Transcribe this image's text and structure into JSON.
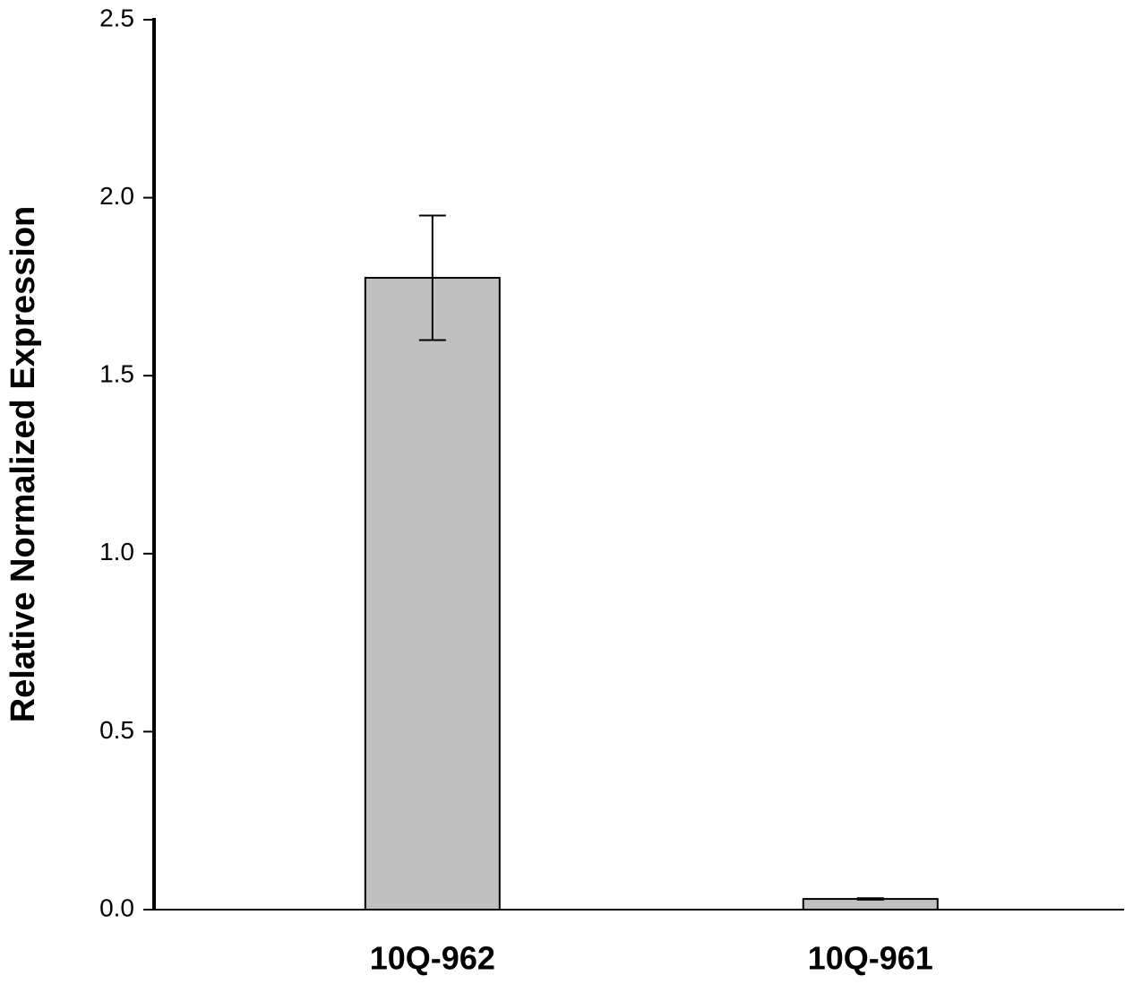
{
  "chart_data": {
    "type": "bar",
    "y_label": "Relative Normalized Expression",
    "categories": [
      "10Q-962",
      "10Q-961"
    ],
    "values": [
      1.775,
      0.03
    ],
    "errors": [
      0.175,
      0.002
    ],
    "color": "#c0c0c0",
    "ylim": [
      0,
      2.5
    ],
    "yticks": [
      {
        "value": 0,
        "label": "0.0"
      },
      {
        "value": 0.5,
        "label": "0.5"
      },
      {
        "value": 1,
        "label": "1.0"
      },
      {
        "value": 1.5,
        "label": "1.5"
      },
      {
        "value": 2,
        "label": "2.0"
      },
      {
        "value": 2.5,
        "label": "2.5"
      }
    ],
    "grid": false
  }
}
